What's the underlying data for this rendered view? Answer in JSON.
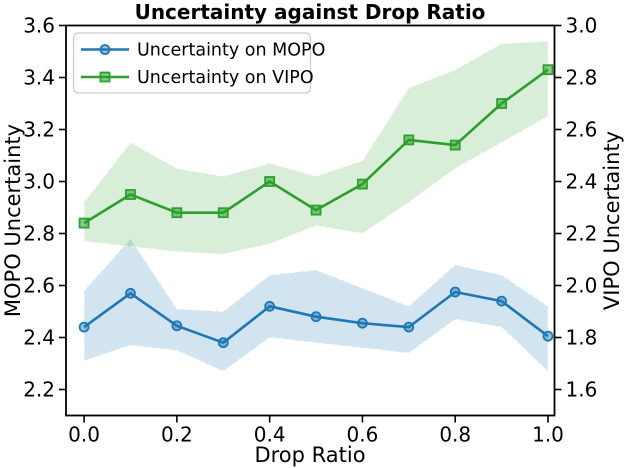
{
  "title": "Uncertainty against Drop Ratio",
  "xlabel": "Drop Ratio",
  "ylabel_left": "MOPO Uncertainty",
  "ylabel_right": "VIPO Uncertainty",
  "chart_data": {
    "type": "line",
    "x": [
      0.0,
      0.1,
      0.2,
      0.3,
      0.4,
      0.5,
      0.6,
      0.7,
      0.8,
      0.9,
      1.0
    ],
    "series": [
      {
        "name": "Uncertainty on MOPO",
        "axis": "left",
        "color": "#1f77b4",
        "band_color": "#1f77b4",
        "band_alpha": 0.2,
        "marker": "circle",
        "values": [
          2.44,
          2.57,
          2.445,
          2.38,
          2.52,
          2.48,
          2.455,
          2.44,
          2.575,
          2.54,
          2.405
        ],
        "band_upper": [
          2.58,
          2.78,
          2.51,
          2.5,
          2.64,
          2.66,
          2.59,
          2.52,
          2.68,
          2.64,
          2.52
        ],
        "band_lower": [
          2.31,
          2.37,
          2.35,
          2.27,
          2.4,
          2.38,
          2.36,
          2.34,
          2.47,
          2.44,
          2.27
        ]
      },
      {
        "name": "Uncertainty on VIPO",
        "axis": "right",
        "color": "#2ca02c",
        "band_color": "#2ca02c",
        "band_alpha": 0.18,
        "marker": "square",
        "values": [
          2.24,
          2.35,
          2.28,
          2.28,
          2.4,
          2.29,
          2.39,
          2.56,
          2.54,
          2.7,
          2.83
        ],
        "band_upper": [
          2.32,
          2.55,
          2.45,
          2.42,
          2.47,
          2.42,
          2.48,
          2.76,
          2.83,
          2.93,
          2.94
        ],
        "band_lower": [
          2.17,
          2.15,
          2.13,
          2.12,
          2.16,
          2.23,
          2.2,
          2.32,
          2.45,
          2.55,
          2.65
        ]
      }
    ],
    "axes": {
      "x": {
        "label": "Drop Ratio",
        "ticks": [
          0.0,
          0.2,
          0.4,
          0.6,
          0.8,
          1.0
        ],
        "lim": [
          -0.039,
          1.014
        ]
      },
      "left": {
        "label": "MOPO Uncertainty",
        "ticks": [
          2.2,
          2.4,
          2.6,
          2.8,
          3.0,
          3.2,
          3.4,
          3.6
        ],
        "lim": [
          2.1,
          3.6
        ]
      },
      "right": {
        "label": "VIPO Uncertainty",
        "ticks": [
          1.6,
          1.8,
          2.0,
          2.2,
          2.4,
          2.6,
          2.8,
          3.0
        ],
        "lim": [
          1.5,
          3.0
        ]
      }
    },
    "grid": false,
    "legend_position": "upper left"
  }
}
